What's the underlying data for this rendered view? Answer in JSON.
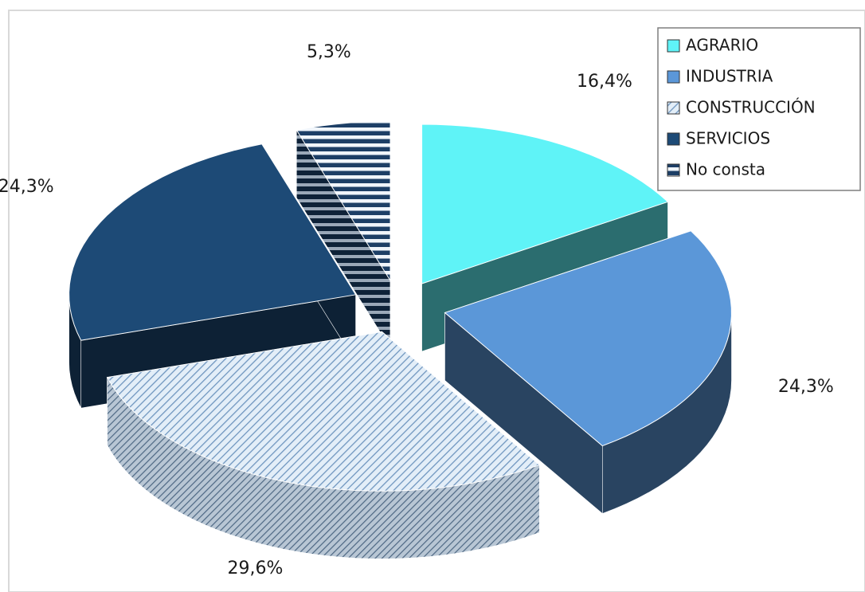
{
  "chart_data": {
    "type": "pie",
    "title": "",
    "categories": [
      "AGRARIO",
      "INDUSTRIA",
      "CONSTRUCCIÓN",
      "SERVICIOS",
      "No consta"
    ],
    "values": [
      16.4,
      24.3,
      29.6,
      24.3,
      5.3
    ],
    "value_labels": [
      "16,4%",
      "24,3%",
      "29,6%",
      "24,3%",
      "5,3%"
    ],
    "unit": "%",
    "legend_position": "top-right",
    "exploded": true,
    "three_d": true,
    "colors": [
      "#5ff3f7",
      "#5b97d8",
      "#c4d9ea",
      "#1d4a76",
      "#1d3f66"
    ],
    "patterns": [
      "solid",
      "solid",
      "crosshatch",
      "solid",
      "horizontal-stripes"
    ]
  }
}
